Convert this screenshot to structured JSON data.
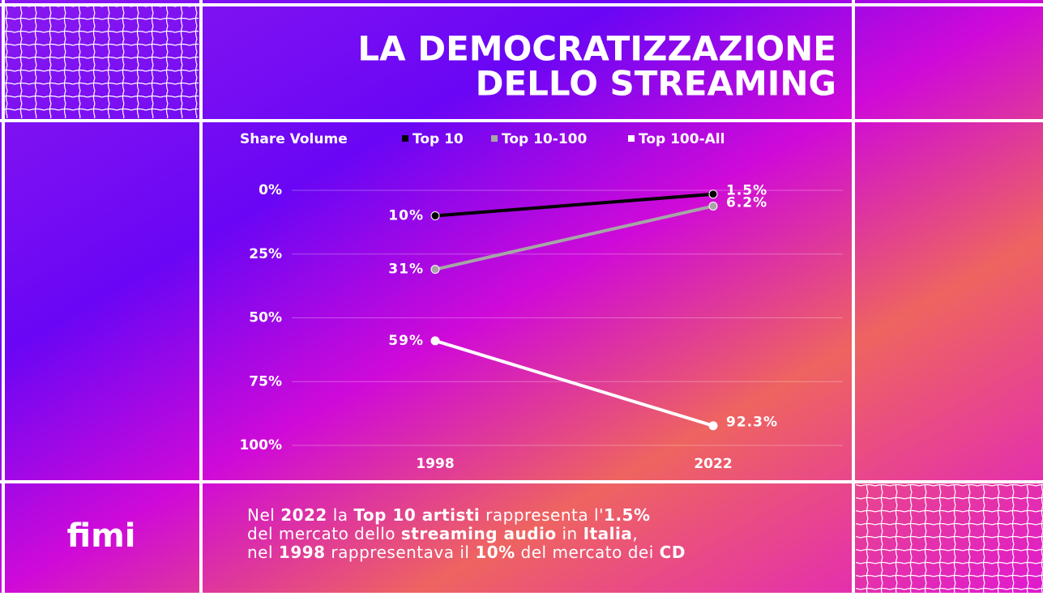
{
  "chart_data": {
    "type": "line",
    "title": [
      "LA DEMOCRATIZZAZIONE",
      "DELLO STREAMING"
    ],
    "legend_title": "Share Volume",
    "categories": [
      "1998",
      "2022"
    ],
    "series": [
      {
        "name": "Top 10",
        "color": "#000000",
        "values": [
          10,
          1.5
        ],
        "value_labels": [
          "10%",
          "1.5%"
        ]
      },
      {
        "name": "Top 10-100",
        "color": "#a6a6a6",
        "values": [
          31,
          6.2
        ],
        "value_labels": [
          "31%",
          "6.2%"
        ]
      },
      {
        "name": "Top 100-All",
        "color": "#ffffff",
        "values": [
          59,
          92.3
        ],
        "value_labels": [
          "59%",
          "92.3%"
        ]
      }
    ],
    "ylim": [
      100,
      0
    ],
    "yticks": [
      {
        "value": 0,
        "label": "0%"
      },
      {
        "value": 25,
        "label": "25%"
      },
      {
        "value": 50,
        "label": "50%"
      },
      {
        "value": 75,
        "label": "75%"
      },
      {
        "value": 100,
        "label": "100%"
      }
    ],
    "grid": true
  },
  "logo": "fimi",
  "caption": [
    [
      {
        "text": "Nel "
      },
      {
        "text": "2022",
        "bold": true
      },
      {
        "text": " la "
      },
      {
        "text": "Top 10 artisti",
        "bold": true
      },
      {
        "text": " rappresenta l'"
      },
      {
        "text": "1.5%",
        "bold": true
      }
    ],
    [
      {
        "text": "del mercato dello "
      },
      {
        "text": "streaming audio",
        "bold": true
      },
      {
        "text": " in "
      },
      {
        "text": "Italia",
        "bold": true
      },
      {
        "text": ","
      }
    ],
    [
      {
        "text": "nel "
      },
      {
        "text": "1998",
        "bold": true
      },
      {
        "text": " rappresentava il "
      },
      {
        "text": "10%",
        "bold": true
      },
      {
        "text": " del mercato dei "
      },
      {
        "text": "CD",
        "bold": true
      }
    ]
  ]
}
